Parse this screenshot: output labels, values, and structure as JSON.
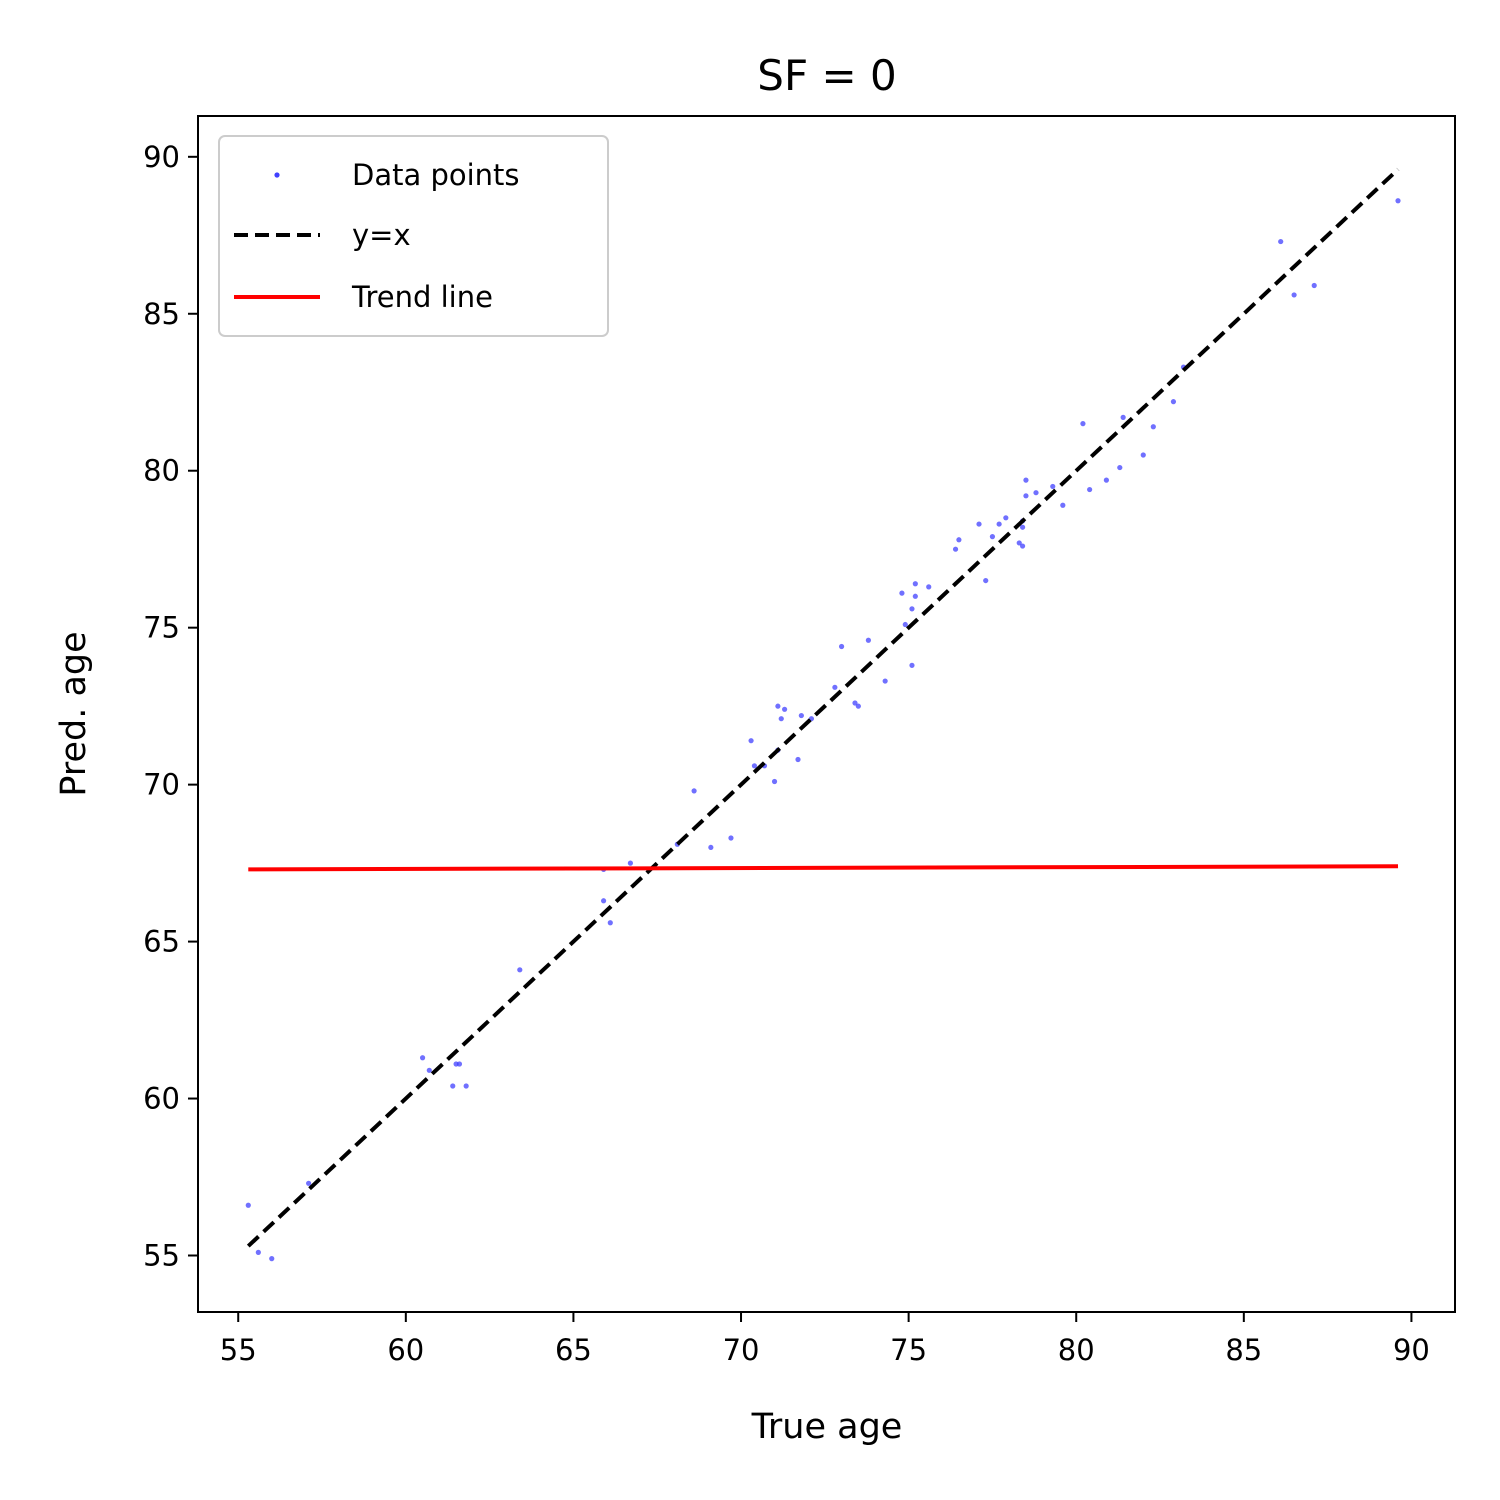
{
  "chart_data": {
    "type": "scatter",
    "title": "SF = 0",
    "xlabel": "True age",
    "ylabel": "Pred. age",
    "xlim": [
      53.8,
      91.3
    ],
    "ylim": [
      53.2,
      91.3
    ],
    "xticks": [
      55,
      60,
      65,
      70,
      75,
      80,
      85,
      90
    ],
    "yticks": [
      55,
      60,
      65,
      70,
      75,
      80,
      85,
      90
    ],
    "grid": false,
    "legend_position": "top-left",
    "colors": {
      "points": "#4040ff",
      "identity": "#000000",
      "trend": "#ff0000"
    },
    "series": [
      {
        "name": "Data points",
        "kind": "scatter",
        "x": [
          55.3,
          55.6,
          56.0,
          57.1,
          60.5,
          60.7,
          61.4,
          61.5,
          61.6,
          61.8,
          63.4,
          65.9,
          65.9,
          66.1,
          66.7,
          68.1,
          68.6,
          69.1,
          69.7,
          70.3,
          70.4,
          70.7,
          71.0,
          71.1,
          71.1,
          71.2,
          71.3,
          71.7,
          71.8,
          72.1,
          72.8,
          73.0,
          73.4,
          73.5,
          73.8,
          74.3,
          74.8,
          74.9,
          75.1,
          75.1,
          75.2,
          75.2,
          75.6,
          76.4,
          76.5,
          77.1,
          77.3,
          77.5,
          77.7,
          77.9,
          78.3,
          78.4,
          78.4,
          78.4,
          78.5,
          78.5,
          78.8,
          79.3,
          79.6,
          80.2,
          80.4,
          80.9,
          81.3,
          81.4,
          82.0,
          82.3,
          82.9,
          83.2,
          86.1,
          86.5,
          87.1,
          89.6
        ],
        "y": [
          56.6,
          55.1,
          54.9,
          57.3,
          61.3,
          60.9,
          60.4,
          61.1,
          61.1,
          60.4,
          64.1,
          66.3,
          67.3,
          65.6,
          67.5,
          68.1,
          69.8,
          68.0,
          68.3,
          71.4,
          70.6,
          70.6,
          70.1,
          71.1,
          72.5,
          72.1,
          72.4,
          70.8,
          72.2,
          72.1,
          73.1,
          74.4,
          72.6,
          72.5,
          74.6,
          73.3,
          76.1,
          75.1,
          73.8,
          75.6,
          76.4,
          76.0,
          76.3,
          77.5,
          77.8,
          78.3,
          76.5,
          77.9,
          78.3,
          78.5,
          77.7,
          78.2,
          78.4,
          77.6,
          79.7,
          79.2,
          79.3,
          79.5,
          78.9,
          81.5,
          79.4,
          79.7,
          80.1,
          81.7,
          80.5,
          81.4,
          82.2,
          83.3,
          87.3,
          85.6,
          85.9,
          88.6
        ]
      },
      {
        "name": "y=x",
        "kind": "line",
        "style": "dashed",
        "x": [
          55.3,
          89.6
        ],
        "y": [
          55.3,
          89.6
        ]
      },
      {
        "name": "Trend line",
        "kind": "line",
        "style": "solid",
        "x": [
          55.3,
          89.6
        ],
        "y": [
          67.3,
          67.4
        ]
      }
    ]
  }
}
